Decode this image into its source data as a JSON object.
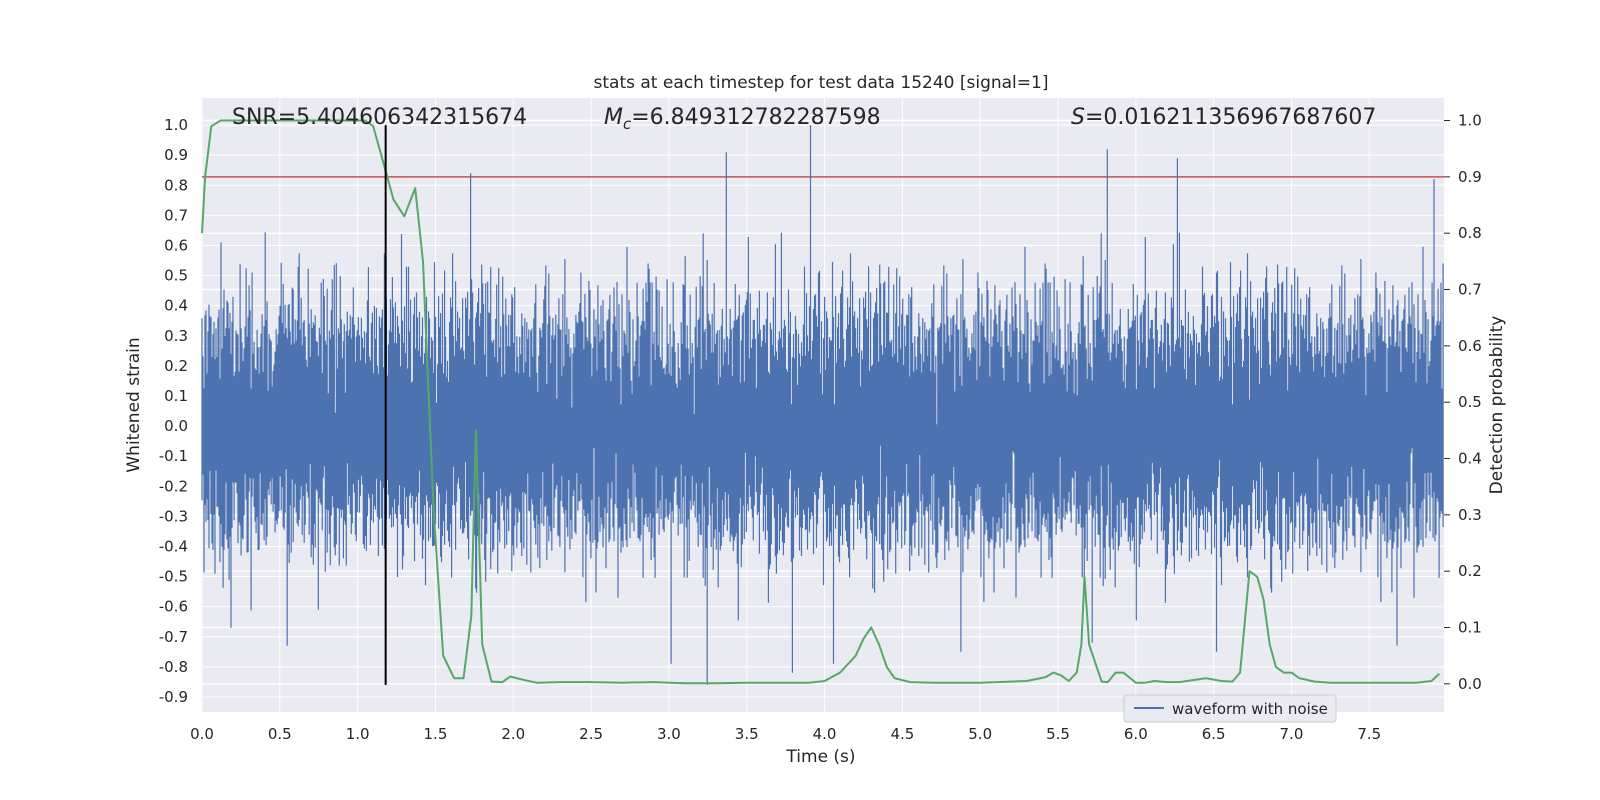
{
  "chart_data": {
    "type": "line",
    "title": "stats at each timestep for test data 15240 [signal=1]",
    "xlabel": "Time (s)",
    "ylabel": "Whitened strain",
    "ylabel_right": "Detection probability",
    "xlim": [
      0.0,
      7.98
    ],
    "ylim": [
      -0.95,
      1.09
    ],
    "ylim_right": [
      -0.05,
      1.04
    ],
    "xticks": [
      "0.0",
      "0.5",
      "1.0",
      "1.5",
      "2.0",
      "2.5",
      "3.0",
      "3.5",
      "4.0",
      "4.5",
      "5.0",
      "5.5",
      "6.0",
      "6.5",
      "7.0",
      "7.5"
    ],
    "yticks": [
      "1.0",
      "0.9",
      "0.8",
      "0.7",
      "0.6",
      "0.5",
      "0.4",
      "0.3",
      "0.2",
      "0.1",
      "0.0",
      "-0.1",
      "-0.2",
      "-0.3",
      "-0.4",
      "-0.5",
      "-0.6",
      "-0.7",
      "-0.8",
      "-0.9"
    ],
    "yticks_right": [
      "1.0",
      "0.9",
      "0.8",
      "0.7",
      "0.6",
      "0.5",
      "0.4",
      "0.3",
      "0.2",
      "0.1",
      "0.0"
    ],
    "grid": true,
    "legend": {
      "placement": "lower-right",
      "entries": [
        "waveform with noise"
      ]
    },
    "annotations": {
      "snr": "SNR=5.404606342315674",
      "mc_symbol": "M",
      "mc_sub": "c",
      "mc_value": "=6.849312782287598",
      "s_symbol": "S",
      "s_value": "=0.016211356967687607"
    },
    "threshold_right": 0.9,
    "event_time": 1.18,
    "waveform": {
      "name": "waveform with noise",
      "color": "#4c72b0",
      "sample_rate": 2048,
      "duration": 8.0,
      "peak_spikes": [
        [
          1.73,
          0.84
        ],
        [
          3.37,
          0.91
        ],
        [
          3.91,
          1.0
        ],
        [
          5.82,
          0.92
        ],
        [
          6.27,
          0.89
        ],
        [
          7.92,
          0.82
        ],
        [
          3.25,
          -0.86
        ],
        [
          4.06,
          -0.79
        ],
        [
          3.02,
          -0.79
        ],
        [
          4.88,
          -0.75
        ],
        [
          5.72,
          -0.72
        ],
        [
          6.52,
          -0.75
        ],
        [
          0.55,
          -0.73
        ],
        [
          7.68,
          -0.73
        ],
        [
          0.19,
          -0.67
        ],
        [
          3.8,
          -0.82
        ]
      ]
    },
    "probability": {
      "name": "Detection probability",
      "color": "#55a868",
      "x": [
        0.0,
        0.02,
        0.06,
        0.12,
        0.2,
        0.3,
        0.4,
        0.5,
        0.6,
        0.7,
        0.8,
        0.9,
        1.0,
        1.05,
        1.1,
        1.13,
        1.18,
        1.23,
        1.3,
        1.37,
        1.42,
        1.45,
        1.49,
        1.55,
        1.62,
        1.68,
        1.73,
        1.76,
        1.8,
        1.86,
        1.93,
        1.98,
        2.05,
        2.15,
        2.3,
        2.5,
        2.7,
        2.9,
        3.1,
        3.3,
        3.5,
        3.7,
        3.9,
        4.0,
        4.1,
        4.2,
        4.25,
        4.3,
        4.35,
        4.4,
        4.45,
        4.55,
        4.7,
        5.0,
        5.3,
        5.42,
        5.47,
        5.52,
        5.57,
        5.62,
        5.65,
        5.67,
        5.7,
        5.78,
        5.82,
        5.87,
        5.92,
        6.0,
        6.06,
        6.12,
        6.2,
        6.28,
        6.35,
        6.45,
        6.55,
        6.62,
        6.67,
        6.73,
        6.78,
        6.82,
        6.86,
        6.9,
        6.95,
        7.0,
        7.05,
        7.15,
        7.25,
        7.4,
        7.6,
        7.8,
        7.9,
        7.95
      ],
      "y": [
        0.8,
        0.9,
        0.99,
        1.0,
        1.0,
        1.0,
        1.0,
        1.0,
        1.0,
        1.0,
        1.0,
        1.0,
        1.0,
        1.0,
        0.99,
        0.96,
        0.91,
        0.86,
        0.83,
        0.88,
        0.75,
        0.55,
        0.3,
        0.05,
        0.01,
        0.01,
        0.12,
        0.45,
        0.07,
        0.004,
        0.003,
        0.013,
        0.008,
        0.002,
        0.003,
        0.003,
        0.002,
        0.003,
        0.001,
        0.001,
        0.002,
        0.002,
        0.002,
        0.005,
        0.02,
        0.05,
        0.08,
        0.1,
        0.07,
        0.03,
        0.01,
        0.003,
        0.002,
        0.002,
        0.005,
        0.012,
        0.02,
        0.015,
        0.005,
        0.02,
        0.07,
        0.19,
        0.07,
        0.004,
        0.003,
        0.02,
        0.02,
        0.002,
        0.002,
        0.005,
        0.003,
        0.003,
        0.006,
        0.01,
        0.005,
        0.004,
        0.02,
        0.2,
        0.19,
        0.15,
        0.07,
        0.03,
        0.02,
        0.02,
        0.01,
        0.004,
        0.002,
        0.002,
        0.002,
        0.002,
        0.005,
        0.018
      ]
    }
  }
}
